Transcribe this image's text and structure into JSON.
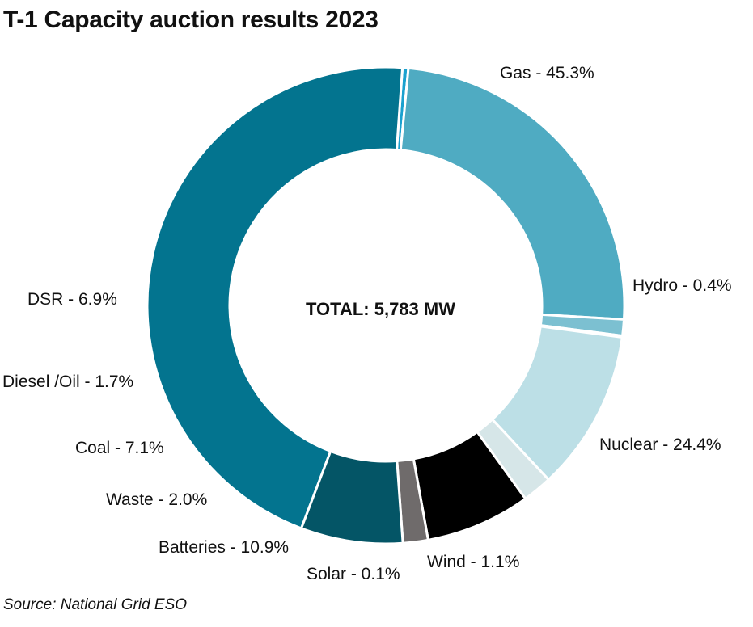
{
  "title": "T-1 Capacity auction results 2023",
  "source": "Source: National Grid ESO",
  "center_label": "TOTAL: 5,783 MW",
  "chart_data": {
    "type": "pie",
    "donut": true,
    "title": "T-1 Capacity auction results 2023",
    "unit": "%",
    "total_label": "TOTAL: 5,783 MW",
    "start_angle_deg": 86,
    "direction": "clockwise",
    "slices": [
      {
        "name": "Hydro",
        "value": 0.4,
        "label": "Hydro - 0.4%",
        "color": "#1aa1cf"
      },
      {
        "name": "Nuclear",
        "value": 24.4,
        "label": "Nuclear - 24.4%",
        "color": "#4fabc2"
      },
      {
        "name": "Wind",
        "value": 1.1,
        "label": "Wind - 1.1%",
        "color": "#7cc0d1"
      },
      {
        "name": "Solar",
        "value": 0.1,
        "label": "Solar - 0.1%",
        "color": "#a8d5e0"
      },
      {
        "name": "Batteries",
        "value": 10.9,
        "label": "Batteries - 10.9%",
        "color": "#bcdfe6"
      },
      {
        "name": "Waste",
        "value": 2.0,
        "label": "Waste - 2.0%",
        "color": "#d6e6e8"
      },
      {
        "name": "Coal",
        "value": 7.1,
        "label": "Coal - 7.1%",
        "color": "#000000"
      },
      {
        "name": "Diesel/Oil",
        "value": 1.7,
        "label": "Diesel /Oil - 1.7%",
        "color": "#6f6b6b"
      },
      {
        "name": "DSR",
        "value": 6.9,
        "label": "DSR - 6.9%",
        "color": "#045566"
      },
      {
        "name": "Gas",
        "value": 45.3,
        "label": "Gas - 45.3%",
        "color": "#03748f"
      }
    ]
  }
}
